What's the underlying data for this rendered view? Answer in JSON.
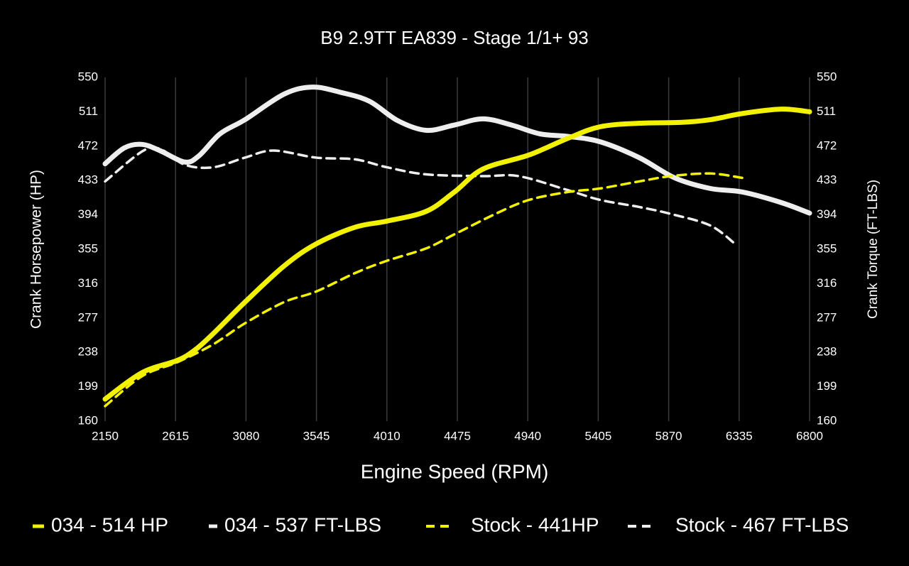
{
  "chart_data": {
    "type": "line",
    "title": "B9 2.9TT EA839 - Stage 1/1+ 93",
    "x_label": "Engine Speed (RPM)",
    "y_label": "Crank Horsepower (HP)",
    "y2_label": "Crank Torque (FT-LBS)",
    "xlim": [
      2150,
      6800
    ],
    "xticks": [
      2150,
      2615,
      3080,
      3545,
      4010,
      4475,
      4940,
      5405,
      5870,
      6335,
      6800
    ],
    "ylim": [
      160,
      550
    ],
    "yticks": [
      160,
      199,
      238,
      277,
      316,
      355,
      394,
      433,
      472,
      511,
      550
    ],
    "y2lim": [
      160,
      550
    ],
    "y2ticks": [
      160,
      199,
      238,
      277,
      316,
      355,
      394,
      433,
      472,
      511,
      550
    ],
    "grid": "x",
    "legend": "bottom",
    "series": [
      {
        "name": "034 - 514 HP",
        "color": "#f2f200",
        "dashed": false,
        "x": [
          2150,
          2394,
          2628,
          2745,
          2862,
          3073,
          3331,
          3542,
          3800,
          4011,
          4269,
          4456,
          4644,
          4948,
          5206,
          5417,
          5675,
          5956,
          6144,
          6355,
          6613,
          6800
        ],
        "values": [
          185,
          215,
          229,
          241,
          259,
          295,
          336,
          361,
          380,
          387,
          398,
          420,
          446,
          462,
          481,
          494,
          498,
          499,
          502,
          509,
          514,
          511
        ]
      },
      {
        "name": "034 - 537 FT-LBS",
        "color": "#eeeeee",
        "dashed": false,
        "axis": "y2",
        "x": [
          2150,
          2277,
          2394,
          2511,
          2675,
          2769,
          2909,
          3073,
          3331,
          3519,
          3706,
          3894,
          4081,
          4269,
          4456,
          4644,
          4832,
          5019,
          5206,
          5417,
          5675,
          5910,
          6144,
          6355,
          6613,
          6800
        ],
        "values": [
          452,
          470,
          474,
          467,
          454,
          461,
          486,
          502,
          531,
          539,
          533,
          523,
          501,
          490,
          496,
          503,
          496,
          486,
          483,
          477,
          459,
          436,
          424,
          420,
          408,
          396
        ]
      },
      {
        "name": "Stock - 441HP",
        "color": "#f2f200",
        "dashed": true,
        "x": [
          2150,
          2394,
          2628,
          2862,
          3073,
          3331,
          3542,
          3800,
          4011,
          4269,
          4456,
          4737,
          4948,
          5206,
          5417,
          5675,
          5886,
          6144,
          6355
        ],
        "values": [
          177,
          211,
          227,
          247,
          271,
          295,
          307,
          328,
          342,
          356,
          372,
          396,
          411,
          420,
          424,
          432,
          438,
          441,
          436
        ]
      },
      {
        "name": "Stock - 467 FT-LBS",
        "color": "#eeeeee",
        "dashed": true,
        "axis": "y2",
        "x": [
          2150,
          2394,
          2511,
          2675,
          2862,
          3073,
          3261,
          3542,
          3800,
          4011,
          4269,
          4644,
          4879,
          5206,
          5417,
          5675,
          5886,
          6144,
          6309
        ],
        "values": [
          432,
          466,
          469,
          451,
          448,
          459,
          467,
          459,
          457,
          448,
          440,
          438,
          438,
          422,
          411,
          403,
          395,
          382,
          361
        ]
      }
    ]
  }
}
